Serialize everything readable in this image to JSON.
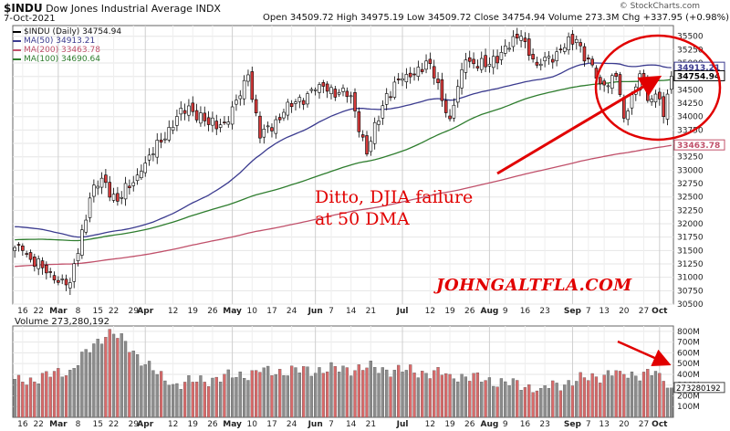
{
  "header": {
    "symbol": "$INDU",
    "name": "Dow Jones Industrial Average",
    "exchange": "INDX",
    "date": "7-Oct-2021",
    "ohlc": "Open 34509.72  High 34975.19  Low 34509.72  Close 34754.94  Volume 273.3M  Chg +337.95 (+0.98%)",
    "source": "© StockCharts.com"
  },
  "legend": [
    {
      "text": "$INDU (Daily) 34754.94",
      "color": "#000000"
    },
    {
      "text": "MA(50) 34913.21",
      "color": "#3b3b8f"
    },
    {
      "text": "MA(200) 33463.78",
      "color": "#c0506a"
    },
    {
      "text": "MA(100) 34690.64",
      "color": "#2e7d2e"
    }
  ],
  "annotations": {
    "line1": "Ditto, DJIA failure",
    "line2": "at 50 DMA",
    "watermark": "JOHNGALTFLA.COM"
  },
  "volume_label": "Volume 273,280,192",
  "colors": {
    "up": "#ffffff",
    "down": "#d63a3a",
    "annotation": "#e10000",
    "ma50": "#3b3b8f",
    "ma100": "#2e7d2e",
    "ma200": "#c0506a",
    "volume_up": "#8c8c8c",
    "volume_down": "#d86a6a"
  },
  "chart_data": [
    {
      "type": "candlestick",
      "title": "$INDU Dow Jones Industrial Average INDX",
      "ylim": [
        30500,
        35700
      ],
      "y_ticks": [
        "30500",
        "30750",
        "31000",
        "31250",
        "31500",
        "31750",
        "32000",
        "32250",
        "32500",
        "32750",
        "33000",
        "33250",
        "33500",
        "33750",
        "34000",
        "34250",
        "34500",
        "34750",
        "35000",
        "35250",
        "35500"
      ],
      "x_ticks": [
        "16",
        "22",
        "Mar",
        "8",
        "15",
        "22",
        "29",
        "Apr",
        "12",
        "19",
        "26",
        "May",
        "10",
        "17",
        "24",
        "Jun",
        "7",
        "14",
        "21",
        "Jul",
        "12",
        "19",
        "26",
        "Aug",
        "9",
        "16",
        "23",
        "Sep",
        "7",
        "13",
        "20",
        "27",
        "Oct"
      ],
      "close_anchors": [
        [
          "Feb 16",
          31500
        ],
        [
          "Feb 26",
          30950
        ],
        [
          "Mar 4",
          30900
        ],
        [
          "Mar 11",
          32480
        ],
        [
          "Mar 17",
          32850
        ],
        [
          "Mar 23",
          32420
        ],
        [
          "Mar 31",
          32980
        ],
        [
          "Apr 9",
          33800
        ],
        [
          "Apr 16",
          34200
        ],
        [
          "Apr 23",
          33850
        ],
        [
          "Apr 30",
          33900
        ],
        [
          "May 7",
          34780
        ],
        [
          "May 12",
          33600
        ],
        [
          "May 20",
          34080
        ],
        [
          "Jun 2",
          34600
        ],
        [
          "Jun 9",
          34450
        ],
        [
          "Jun 14",
          34390
        ],
        [
          "Jun 18",
          33300
        ],
        [
          "Jun 25",
          34430
        ],
        [
          "Jul 2",
          34790
        ],
        [
          "Jul 12",
          34990
        ],
        [
          "Jul 19",
          33960
        ],
        [
          "Jul 23",
          35060
        ],
        [
          "Jul 30",
          34930
        ],
        [
          "Aug 6",
          35200
        ],
        [
          "Aug 13",
          35500
        ],
        [
          "Aug 19",
          34960
        ],
        [
          "Aug 26",
          35210
        ],
        [
          "Sep 2",
          35440
        ],
        [
          "Sep 10",
          34610
        ],
        [
          "Sep 16",
          34750
        ],
        [
          "Sep 20",
          33970
        ],
        [
          "Sep 24",
          34800
        ],
        [
          "Sep 28",
          34300
        ],
        [
          "Oct 1",
          34330
        ],
        [
          "Oct 4",
          34000
        ],
        [
          "Oct 6",
          34420
        ],
        [
          "Oct 7",
          34754.94
        ]
      ],
      "series": [
        {
          "name": "MA(50)",
          "last": 34913.21
        },
        {
          "name": "MA(200)",
          "last": 33463.78
        },
        {
          "name": "MA(100)",
          "last": 34690.64
        }
      ],
      "last_price_label": "34754.94",
      "ma50_label": "34913.21",
      "ma200_label": "33463.78"
    },
    {
      "type": "bar",
      "title": "Volume 273,280,192",
      "ylim": [
        0,
        850
      ],
      "y_ticks": [
        "100M",
        "200M",
        "300M",
        "400M",
        "500M",
        "600M",
        "700M",
        "800M"
      ],
      "last_volume_label": "273280192",
      "volume_anchors_millions": [
        [
          "Feb 16",
          330
        ],
        [
          "Mar 4",
          440
        ],
        [
          "Mar 19",
          820
        ],
        [
          "Apr 9",
          300
        ],
        [
          "May 12",
          420
        ],
        [
          "Jun 18",
          460
        ],
        [
          "Jul 19",
          400
        ],
        [
          "Aug 20",
          270
        ],
        [
          "Sep 17",
          430
        ],
        [
          "Sep 20",
          400
        ],
        [
          "Oct 1",
          410
        ],
        [
          "Oct 7",
          273.28
        ]
      ]
    }
  ]
}
